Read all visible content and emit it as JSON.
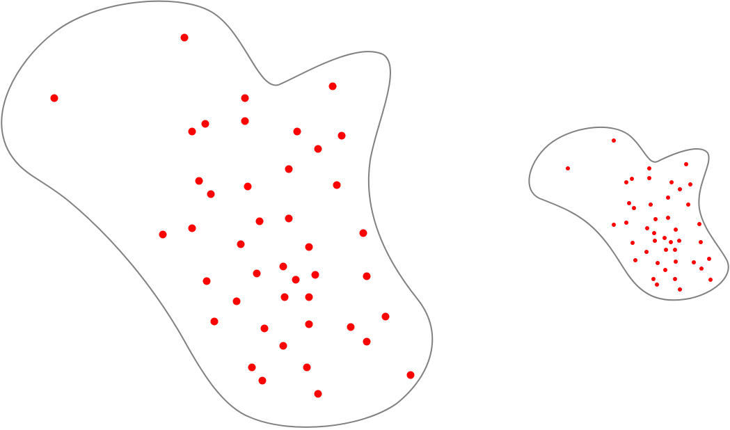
{
  "colors": {
    "outline": "#808080",
    "dot": "#ff0000",
    "background": "#ffffff"
  }
}
